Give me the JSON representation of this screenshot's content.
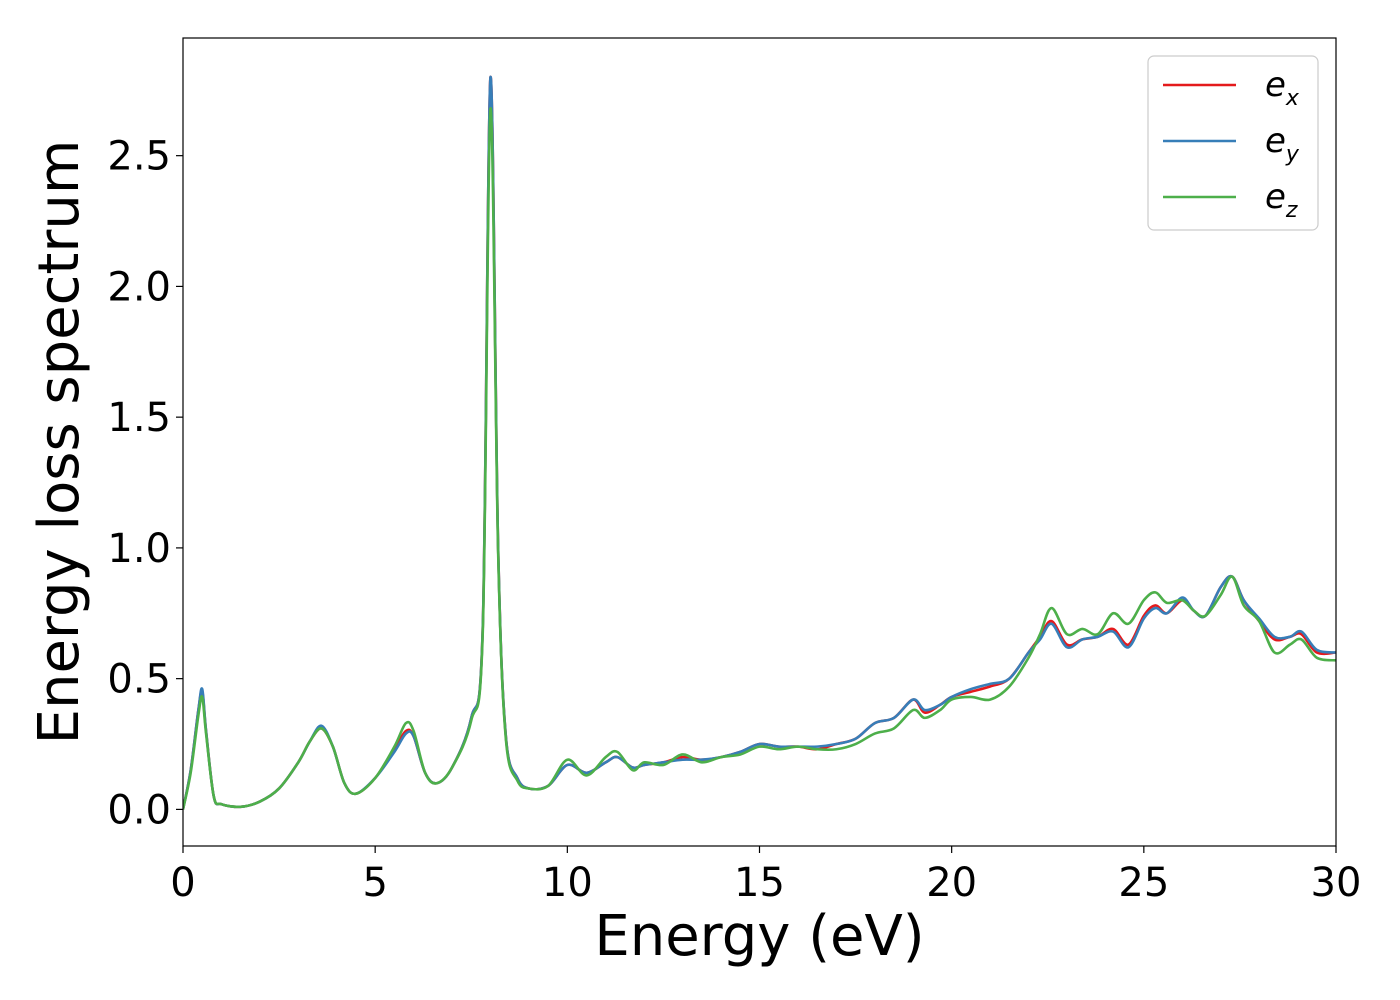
{
  "chart_data": {
    "type": "line",
    "title": "",
    "xlabel": "Energy (eV)",
    "ylabel": "Energy loss spectrum",
    "xlim": [
      0,
      30
    ],
    "ylim": [
      -0.14,
      2.95
    ],
    "xticks": [
      0,
      5,
      10,
      15,
      20,
      25,
      30
    ],
    "xtick_labels": [
      "0",
      "5",
      "10",
      "15",
      "20",
      "25",
      "30"
    ],
    "yticks": [
      0.0,
      0.5,
      1.0,
      1.5,
      2.0,
      2.5
    ],
    "ytick_labels": [
      "0.0",
      "0.5",
      "1.0",
      "1.5",
      "2.0",
      "2.5"
    ],
    "grid": false,
    "legend_position": "top-right",
    "series": [
      {
        "name": "e_x",
        "legend_base": "e",
        "legend_sub": "x",
        "color": "#e41a1c",
        "x": [
          0,
          0.2,
          0.4,
          0.5,
          0.6,
          0.8,
          1.0,
          1.5,
          2.0,
          2.5,
          3.0,
          3.3,
          3.6,
          3.9,
          4.2,
          4.5,
          5.0,
          5.5,
          5.8,
          6.0,
          6.3,
          6.6,
          7.0,
          7.5,
          7.8,
          8.0,
          8.2,
          8.4,
          8.7,
          9.0,
          9.5,
          10.0,
          10.5,
          11.0,
          11.3,
          11.7,
          12.0,
          12.5,
          13.0,
          13.5,
          14.0,
          14.5,
          15.0,
          15.5,
          16.0,
          16.5,
          17.0,
          17.5,
          18.0,
          18.5,
          19.0,
          19.3,
          19.7,
          20.0,
          20.5,
          21.0,
          21.5,
          22.0,
          22.3,
          22.6,
          23.0,
          23.4,
          23.8,
          24.2,
          24.6,
          25.0,
          25.3,
          25.6,
          26.0,
          26.3,
          26.6,
          27.0,
          27.3,
          27.6,
          28.0,
          28.4,
          28.8,
          29.1,
          29.5,
          30.0
        ],
        "values": [
          0.0,
          0.15,
          0.38,
          0.45,
          0.3,
          0.05,
          0.02,
          0.01,
          0.03,
          0.08,
          0.18,
          0.26,
          0.31,
          0.24,
          0.1,
          0.06,
          0.12,
          0.23,
          0.3,
          0.28,
          0.14,
          0.1,
          0.16,
          0.35,
          0.7,
          2.8,
          1.0,
          0.28,
          0.12,
          0.08,
          0.09,
          0.17,
          0.14,
          0.18,
          0.2,
          0.16,
          0.17,
          0.18,
          0.2,
          0.19,
          0.2,
          0.22,
          0.25,
          0.24,
          0.24,
          0.23,
          0.25,
          0.27,
          0.33,
          0.35,
          0.42,
          0.37,
          0.4,
          0.43,
          0.45,
          0.47,
          0.5,
          0.6,
          0.66,
          0.72,
          0.63,
          0.65,
          0.66,
          0.69,
          0.63,
          0.74,
          0.78,
          0.75,
          0.8,
          0.76,
          0.74,
          0.85,
          0.89,
          0.8,
          0.72,
          0.65,
          0.66,
          0.67,
          0.6,
          0.6
        ]
      },
      {
        "name": "e_y",
        "legend_base": "e",
        "legend_sub": "y",
        "color": "#377eb8",
        "x": [
          0,
          0.2,
          0.4,
          0.5,
          0.6,
          0.8,
          1.0,
          1.5,
          2.0,
          2.5,
          3.0,
          3.3,
          3.6,
          3.9,
          4.2,
          4.5,
          5.0,
          5.5,
          5.8,
          6.0,
          6.3,
          6.6,
          7.0,
          7.5,
          7.8,
          8.0,
          8.2,
          8.4,
          8.7,
          9.0,
          9.5,
          10.0,
          10.5,
          11.0,
          11.3,
          11.7,
          12.0,
          12.5,
          13.0,
          13.5,
          14.0,
          14.5,
          15.0,
          15.5,
          16.0,
          16.5,
          17.0,
          17.5,
          18.0,
          18.5,
          19.0,
          19.3,
          19.7,
          20.0,
          20.5,
          21.0,
          21.5,
          22.0,
          22.3,
          22.6,
          23.0,
          23.4,
          23.8,
          24.2,
          24.6,
          25.0,
          25.3,
          25.6,
          26.0,
          26.3,
          26.6,
          27.0,
          27.3,
          27.6,
          28.0,
          28.4,
          28.8,
          29.1,
          29.5,
          30.0
        ],
        "values": [
          0.0,
          0.15,
          0.38,
          0.46,
          0.3,
          0.05,
          0.02,
          0.01,
          0.03,
          0.08,
          0.18,
          0.26,
          0.32,
          0.24,
          0.1,
          0.06,
          0.12,
          0.22,
          0.29,
          0.28,
          0.14,
          0.1,
          0.16,
          0.35,
          0.7,
          2.8,
          1.0,
          0.28,
          0.12,
          0.08,
          0.09,
          0.17,
          0.14,
          0.18,
          0.2,
          0.16,
          0.17,
          0.18,
          0.19,
          0.19,
          0.2,
          0.22,
          0.25,
          0.24,
          0.24,
          0.24,
          0.25,
          0.27,
          0.33,
          0.35,
          0.42,
          0.38,
          0.4,
          0.43,
          0.46,
          0.48,
          0.5,
          0.6,
          0.65,
          0.71,
          0.62,
          0.65,
          0.66,
          0.68,
          0.62,
          0.73,
          0.77,
          0.75,
          0.81,
          0.76,
          0.74,
          0.85,
          0.89,
          0.8,
          0.73,
          0.66,
          0.66,
          0.68,
          0.61,
          0.6
        ]
      },
      {
        "name": "e_z",
        "legend_base": "e",
        "legend_sub": "z",
        "color": "#4daf4a",
        "x": [
          0,
          0.2,
          0.4,
          0.5,
          0.6,
          0.8,
          1.0,
          1.5,
          2.0,
          2.5,
          3.0,
          3.3,
          3.6,
          3.9,
          4.2,
          4.5,
          5.0,
          5.5,
          5.8,
          6.0,
          6.3,
          6.6,
          7.0,
          7.5,
          7.8,
          8.0,
          8.2,
          8.4,
          8.7,
          9.0,
          9.5,
          10.0,
          10.5,
          11.0,
          11.3,
          11.7,
          12.0,
          12.5,
          13.0,
          13.5,
          14.0,
          14.5,
          15.0,
          15.5,
          16.0,
          16.5,
          17.0,
          17.5,
          18.0,
          18.5,
          19.0,
          19.3,
          19.7,
          20.0,
          20.5,
          21.0,
          21.5,
          22.0,
          22.3,
          22.6,
          23.0,
          23.4,
          23.8,
          24.2,
          24.6,
          25.0,
          25.3,
          25.6,
          26.0,
          26.3,
          26.6,
          27.0,
          27.3,
          27.6,
          28.0,
          28.4,
          28.8,
          29.1,
          29.5,
          30.0
        ],
        "values": [
          0.0,
          0.14,
          0.36,
          0.43,
          0.29,
          0.05,
          0.02,
          0.01,
          0.03,
          0.08,
          0.18,
          0.26,
          0.31,
          0.24,
          0.1,
          0.06,
          0.12,
          0.24,
          0.33,
          0.3,
          0.14,
          0.1,
          0.16,
          0.34,
          0.68,
          2.68,
          0.98,
          0.27,
          0.11,
          0.08,
          0.09,
          0.19,
          0.13,
          0.2,
          0.22,
          0.15,
          0.18,
          0.17,
          0.21,
          0.18,
          0.2,
          0.21,
          0.24,
          0.23,
          0.24,
          0.23,
          0.23,
          0.25,
          0.29,
          0.31,
          0.38,
          0.35,
          0.38,
          0.42,
          0.43,
          0.42,
          0.47,
          0.58,
          0.67,
          0.77,
          0.67,
          0.69,
          0.67,
          0.75,
          0.71,
          0.8,
          0.83,
          0.79,
          0.8,
          0.76,
          0.74,
          0.82,
          0.89,
          0.78,
          0.72,
          0.6,
          0.63,
          0.65,
          0.58,
          0.57
        ]
      }
    ]
  }
}
